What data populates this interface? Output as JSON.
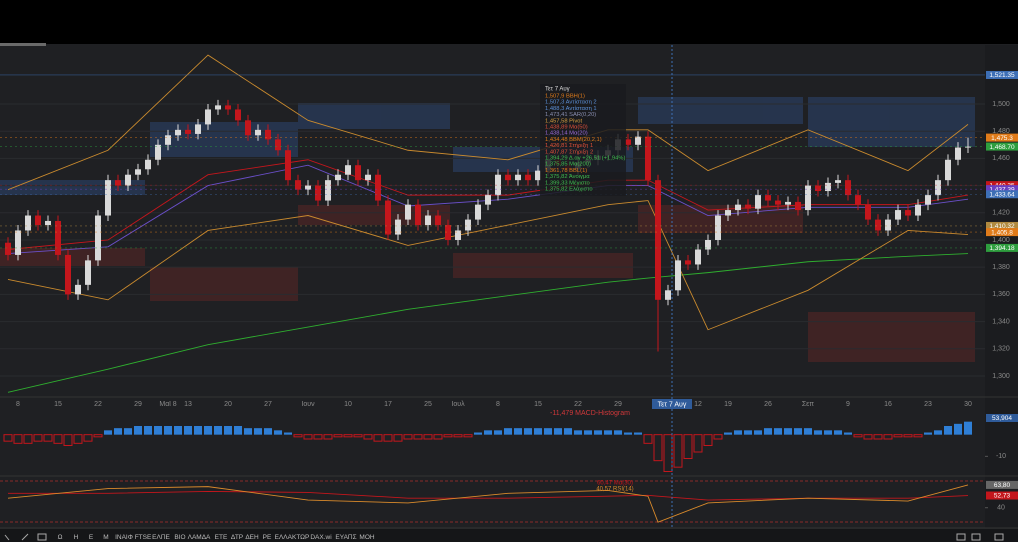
{
  "chart_data": [
    {
      "type": "candlestick",
      "categories": [
        null,
        "8",
        null,
        null,
        null,
        "15",
        null,
        null,
        null,
        "22",
        null,
        null,
        null,
        "29",
        null,
        null,
        "Μαϊ 8",
        null,
        "13",
        null,
        null,
        null,
        "20",
        null,
        null,
        null,
        "27",
        null,
        null,
        null,
        "Ιουν",
        null,
        null,
        null,
        "10",
        null,
        null,
        null,
        "17",
        null,
        null,
        null,
        "25",
        null,
        null,
        "Ιουλ",
        null,
        null,
        null,
        "8",
        null,
        null,
        null,
        "15",
        null,
        null,
        null,
        "22",
        null,
        null,
        null,
        "29",
        null,
        null,
        null,
        null,
        null,
        null,
        null,
        "12",
        null,
        null,
        "19",
        null,
        null,
        null,
        "26",
        null,
        null,
        null,
        "Σεπ",
        null,
        null,
        null,
        "9",
        null,
        null,
        null,
        "16",
        null,
        null,
        null,
        "23",
        null,
        null,
        null,
        "30"
      ],
      "open": [
        1398,
        1389,
        1407,
        1418,
        1411,
        1414,
        1389,
        1360,
        1367,
        1385,
        1418,
        1444,
        1440,
        1448,
        1452,
        1459,
        1470,
        1477,
        1481,
        1478,
        1485,
        1496,
        1499,
        1496,
        1488,
        1477,
        1481,
        1474,
        1466,
        1444,
        1437,
        1440,
        1429,
        1444,
        1448,
        1455,
        1444,
        1448,
        1429,
        1404,
        1415,
        1426,
        1411,
        1418,
        1411,
        1400,
        1407,
        1415,
        1426,
        1433,
        1448,
        1444,
        1448,
        1444,
        1451,
        1459,
        1455,
        1452,
        1457,
        1459,
        1462,
        1466,
        1474,
        1470,
        1476,
        1444,
        1356,
        1363,
        1385,
        1382,
        1393,
        1400,
        1418,
        1422,
        1426,
        1423,
        1433,
        1429,
        1426,
        1428,
        1422,
        1440,
        1436,
        1442,
        1444,
        1433,
        1426,
        1415,
        1407,
        1415,
        1422,
        1418,
        1426,
        1433,
        1444,
        1459,
        1468
      ],
      "high": [
        1402,
        1411,
        1422,
        1422,
        1418,
        1418,
        1393,
        1371,
        1389,
        1422,
        1448,
        1448,
        1452,
        1456,
        1463,
        1474,
        1481,
        1485,
        1485,
        1489,
        1500,
        1503,
        1503,
        1500,
        1492,
        1485,
        1485,
        1478,
        1470,
        1448,
        1444,
        1444,
        1448,
        1452,
        1459,
        1459,
        1452,
        1452,
        1433,
        1419,
        1430,
        1430,
        1422,
        1422,
        1415,
        1411,
        1419,
        1430,
        1437,
        1452,
        1452,
        1452,
        1452,
        1455,
        1463,
        1463,
        1459,
        1461,
        1463,
        1466,
        1470,
        1478,
        1478,
        1480,
        1480,
        1448,
        1367,
        1389,
        1389,
        1397,
        1404,
        1422,
        1426,
        1430,
        1430,
        1437,
        1437,
        1433,
        1432,
        1432,
        1444,
        1444,
        1446,
        1448,
        1448,
        1437,
        1430,
        1419,
        1419,
        1426,
        1426,
        1430,
        1437,
        1448,
        1463,
        1472,
        1475.3
      ],
      "low": [
        1385,
        1385,
        1403,
        1407,
        1407,
        1385,
        1356,
        1356,
        1363,
        1381,
        1414,
        1436,
        1436,
        1444,
        1448,
        1455,
        1466,
        1473,
        1474,
        1474,
        1481,
        1492,
        1492,
        1484,
        1473,
        1473,
        1470,
        1462,
        1440,
        1433,
        1433,
        1425,
        1425,
        1440,
        1444,
        1440,
        1440,
        1425,
        1400,
        1400,
        1411,
        1407,
        1407,
        1407,
        1396,
        1396,
        1403,
        1411,
        1422,
        1429,
        1440,
        1440,
        1440,
        1440,
        1447,
        1451,
        1448,
        1448,
        1453,
        1455,
        1458,
        1462,
        1466,
        1466,
        1440,
        1318,
        1352,
        1359,
        1378,
        1378,
        1389,
        1396,
        1414,
        1418,
        1419,
        1419,
        1425,
        1422,
        1422,
        1418,
        1418,
        1432,
        1432,
        1438,
        1429,
        1422,
        1411,
        1403,
        1403,
        1411,
        1414,
        1414,
        1422,
        1429,
        1440,
        1455,
        1464
      ],
      "close": [
        1389,
        1407,
        1418,
        1411,
        1414,
        1389,
        1360,
        1367,
        1385,
        1418,
        1444,
        1440,
        1448,
        1452,
        1459,
        1470,
        1477,
        1481,
        1478,
        1485,
        1496,
        1499,
        1496,
        1488,
        1477,
        1481,
        1474,
        1466,
        1444,
        1437,
        1440,
        1429,
        1444,
        1448,
        1455,
        1444,
        1448,
        1429,
        1404,
        1415,
        1426,
        1411,
        1418,
        1411,
        1400,
        1407,
        1415,
        1426,
        1433,
        1448,
        1444,
        1448,
        1444,
        1451,
        1459,
        1455,
        1452,
        1457,
        1459,
        1462,
        1466,
        1474,
        1470,
        1476,
        1444,
        1356,
        1363,
        1385,
        1382,
        1393,
        1400,
        1418,
        1422,
        1426,
        1423,
        1433,
        1429,
        1426,
        1428,
        1422,
        1440,
        1436,
        1442,
        1444,
        1433,
        1426,
        1415,
        1407,
        1415,
        1422,
        1418,
        1426,
        1433,
        1444,
        1459,
        1468,
        1468.7
      ],
      "up_color": "#d9d9d9",
      "down_color": "#c4161c",
      "ylim": [
        1286,
        1543.4
      ],
      "yticks": [
        {
          "value": 1300,
          "label": "1,300"
        },
        {
          "value": 1320,
          "label": "1,320"
        },
        {
          "value": 1340,
          "label": "1,340"
        },
        {
          "value": 1360,
          "label": "1,360"
        },
        {
          "value": 1380,
          "label": "1,380"
        },
        {
          "value": 1400,
          "label": "1,400"
        },
        {
          "value": 1420,
          "label": "1,420"
        },
        {
          "value": 1440,
          "label": "1,440"
        },
        {
          "value": 1460,
          "label": "1,460"
        },
        {
          "value": 1480,
          "label": "1,480"
        },
        {
          "value": 1500,
          "label": "1,500"
        }
      ],
      "grid": true,
      "overlays": [
        {
          "color": "#2fae2f",
          "x": [
            0,
            10,
            20,
            30,
            40,
            50,
            60,
            64,
            70,
            80,
            90,
            96
          ],
          "values": [
            1288,
            1305,
            1323,
            1336,
            1349,
            1359,
            1369,
            1372,
            1376,
            1384,
            1388,
            1390
          ]
        },
        {
          "color": "#c98a2e",
          "x": [
            0,
            10,
            20,
            30,
            40,
            50,
            60,
            64,
            70,
            80,
            90,
            96
          ],
          "values": [
            1437,
            1466,
            1536,
            1488,
            1466,
            1459,
            1481,
            1481,
            1451,
            1481,
            1451,
            1485
          ]
        },
        {
          "color": "#c98a2e",
          "x": [
            0,
            10,
            20,
            30,
            40,
            50,
            60,
            64,
            70,
            80,
            90,
            96
          ],
          "values": [
            1371,
            1356,
            1407,
            1418,
            1396,
            1411,
            1426,
            1429,
            1334,
            1363,
            1407,
            1404
          ]
        },
        {
          "color": "#c4161c",
          "x": [
            0,
            10,
            20,
            30,
            40,
            50,
            60,
            64,
            70,
            80,
            90,
            96
          ],
          "values": [
            1393,
            1400,
            1448,
            1459,
            1433,
            1433,
            1444,
            1444,
            1422,
            1426,
            1426,
            1433
          ]
        },
        {
          "color": "#6a4fc9",
          "x": [
            0,
            10,
            20,
            30,
            40,
            50,
            60,
            64,
            70,
            80,
            90,
            96
          ],
          "values": [
            1390,
            1395,
            1440,
            1455,
            1425,
            1430,
            1440,
            1440,
            1418,
            1424,
            1424,
            1430
          ]
        }
      ],
      "price_labels": [
        {
          "value": 1521.35,
          "label": "1,521.35",
          "color": "#3d6fb6"
        },
        {
          "value": 1475.3,
          "label": "1,475.3",
          "color": "#e07b1a"
        },
        {
          "value": 1468.7,
          "label": "1,468.70",
          "color": "#2e9e3e"
        },
        {
          "value": 1440.35,
          "label": "1,440.35",
          "color": "#c4161c"
        },
        {
          "value": 1437.39,
          "label": "1,437.39",
          "color": "#6a3fc0"
        },
        {
          "value": 1433.64,
          "label": "1,433.64",
          "color": "#3d6fb6"
        },
        {
          "value": 1410.32,
          "label": "1,410.32",
          "color": "#b08a40"
        },
        {
          "value": 1405.8,
          "label": "1,405.8",
          "color": "#e07b1a"
        },
        {
          "value": 1394.18,
          "label": "1,394.18",
          "color": "#2e9e3e"
        }
      ]
    },
    {
      "type": "histogram",
      "title": "-11,479 MACD-Histogram",
      "values": [
        -3,
        -4,
        -4,
        -3,
        -3,
        -4,
        -5,
        -4,
        -3,
        -1,
        2,
        3,
        3,
        4,
        4,
        4,
        4,
        4,
        4,
        4,
        4,
        4,
        4,
        4,
        3,
        3,
        3,
        2,
        1,
        -1,
        -2,
        -2,
        -2,
        -1,
        -1,
        -1,
        -2,
        -3,
        -3,
        -3,
        -2,
        -2,
        -2,
        -2,
        -1,
        -1,
        -1,
        1,
        2,
        2,
        3,
        3,
        3,
        3,
        3,
        3,
        3,
        2,
        2,
        2,
        2,
        2,
        1,
        1,
        -4,
        -12,
        -17,
        -15,
        -11,
        -8,
        -5,
        -2,
        1,
        2,
        2,
        2,
        3,
        3,
        3,
        3,
        3,
        2,
        2,
        2,
        1,
        -1,
        -2,
        -2,
        -2,
        -1,
        -1,
        -1,
        1,
        2,
        4,
        5,
        6
      ],
      "up_color": "#2f7fd6",
      "down_color": "#c4161c",
      "ylim": [
        -20,
        10
      ],
      "yticks": [
        -10
      ],
      "last_label": "53,904"
    },
    {
      "type": "line",
      "x": [
        0,
        10,
        20,
        30,
        40,
        50,
        60,
        64,
        65,
        70,
        80,
        90,
        96
      ],
      "series": [
        {
          "name": "60,47 Μα(30)",
          "color": "#c4161c",
          "values": [
            55,
            55,
            57,
            56,
            50,
            50,
            52,
            53,
            52,
            48,
            50,
            50,
            52.73
          ]
        },
        {
          "name": "40,57 RSI(14)",
          "color": "#d98a2b",
          "values": [
            50,
            60,
            62,
            48,
            45,
            55,
            58,
            52,
            25,
            45,
            50,
            47,
            63.8
          ]
        }
      ],
      "ylim": [
        22,
        71
      ],
      "yticks": [
        40
      ],
      "price_labels": [
        {
          "value": 63.8,
          "label": "63,80",
          "color": "#666666"
        },
        {
          "value": 52.73,
          "label": "52,73",
          "color": "#c4161c"
        }
      ]
    }
  ],
  "tooltip": {
    "date": "Τετ 7 Αυγ",
    "lines": [
      {
        "text": "1,507,9 BBH(1)",
        "color": "#e07b1a"
      },
      {
        "text": "1,507,3 Αντίσταση 2",
        "color": "#5b8fd6"
      },
      {
        "text": "1,488,3 Αντίσταση 1",
        "color": "#5b8fd6"
      },
      {
        "text": "1,473,41 SAR(0,20)",
        "color": "#8a8fb0"
      },
      {
        "text": "1,457,58 Pivot",
        "color": "#d9a040"
      },
      {
        "text": "1,438,89 Μα(50)",
        "color": "#e0503a"
      },
      {
        "text": "1,438,14 Μα(20)",
        "color": "#9a6ad8"
      },
      {
        "text": "1,434,48 BBM(20,2,1)",
        "color": "#e07b1a"
      },
      {
        "text": "1,426,81 Στήριξη 1",
        "color": "#e0503a"
      },
      {
        "text": "1,407,87 Στήριξη 2",
        "color": "#e0503a"
      },
      {
        "text": "1,394,29 Δ.αγ +26,51 (+1,94%)",
        "color": "#3fbf4f"
      },
      {
        "text": "1,375,85 Μα(200)",
        "color": "#3fbf4f"
      },
      {
        "text": "1,361,78 BBL(1)",
        "color": "#e07b1a"
      },
      {
        "text": "1,375,82 Άνοιγμα",
        "color": "#3fbf4f"
      },
      {
        "text": "1,399,33 Μέγιστο",
        "color": "#3fbf4f"
      },
      {
        "text": "1,375,82 Ελάχιστο",
        "color": "#3fbf4f"
      }
    ]
  },
  "toolbar": {
    "items": [
      "Ω",
      "Η",
      "Ε",
      "Μ",
      "ΙΝΑΙΦ",
      "FTSE",
      "ΕΛΠΕ",
      "ΒΙΟ",
      "ΛΑΜΔΑ",
      "ΕΤΕ",
      "ΔΤΡ",
      "ΔΕΗ",
      "ΡΕ",
      "ΕΛΛΑΚΤΩΡ",
      "DAX.wi",
      "ΕΥΑΠΣ",
      "ΜΟΗ"
    ]
  }
}
